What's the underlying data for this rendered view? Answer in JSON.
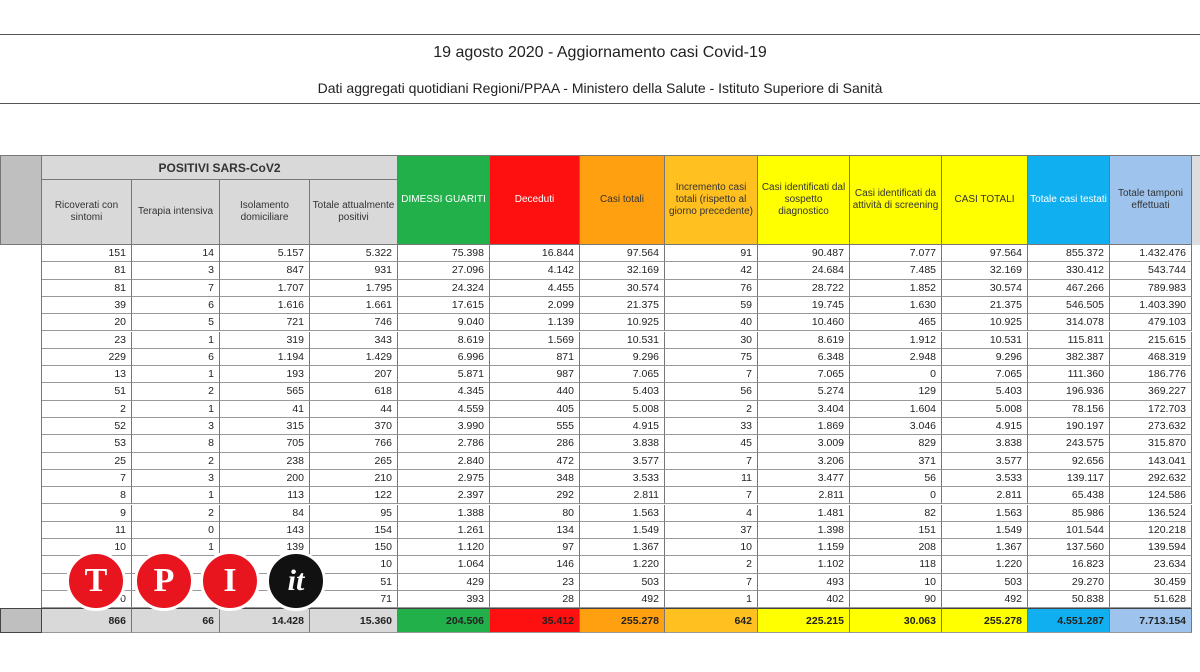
{
  "header": {
    "title": "19 agosto 2020 - Aggiornamento casi Covid-19",
    "subtitle": "Dati aggregati quotidiani Regioni/PPAA - Ministero della Salute - Istituto Superiore di Sanità"
  },
  "table": {
    "group_header": "POSITIVI SARS-CoV2",
    "columns": [
      "Ricoverati con sintomi",
      "Terapia intensiva",
      "Isolamento domiciliare",
      "Totale attualmente positivi",
      "DIMESSI GUARITI",
      "Deceduti",
      "Casi totali",
      "Incremento casi totali (rispetto al giorno precedente)",
      "Casi identificati dal sospetto diagnostico",
      "Casi identificati da attività di screening",
      "CASI TOTALI",
      "Totale casi testati",
      "Totale tamponi effettuati"
    ],
    "rows": [
      [
        "151",
        "14",
        "5.157",
        "5.322",
        "75.398",
        "16.844",
        "97.564",
        "91",
        "90.487",
        "7.077",
        "97.564",
        "855.372",
        "1.432.476"
      ],
      [
        "81",
        "3",
        "847",
        "931",
        "27.096",
        "4.142",
        "32.169",
        "42",
        "24.684",
        "7.485",
        "32.169",
        "330.412",
        "543.744"
      ],
      [
        "81",
        "7",
        "1.707",
        "1.795",
        "24.324",
        "4.455",
        "30.574",
        "76",
        "28.722",
        "1.852",
        "30.574",
        "467.266",
        "789.983"
      ],
      [
        "39",
        "6",
        "1.616",
        "1.661",
        "17.615",
        "2.099",
        "21.375",
        "59",
        "19.745",
        "1.630",
        "21.375",
        "546.505",
        "1.403.390"
      ],
      [
        "20",
        "5",
        "721",
        "746",
        "9.040",
        "1.139",
        "10.925",
        "40",
        "10.460",
        "465",
        "10.925",
        "314.078",
        "479.103"
      ],
      [
        "23",
        "1",
        "319",
        "343",
        "8.619",
        "1.569",
        "10.531",
        "30",
        "8.619",
        "1.912",
        "10.531",
        "115.811",
        "215.615"
      ],
      [
        "229",
        "6",
        "1.194",
        "1.429",
        "6.996",
        "871",
        "9.296",
        "75",
        "6.348",
        "2.948",
        "9.296",
        "382.387",
        "468.319"
      ],
      [
        "13",
        "1",
        "193",
        "207",
        "5.871",
        "987",
        "7.065",
        "7",
        "7.065",
        "0",
        "7.065",
        "111.360",
        "186.776"
      ],
      [
        "51",
        "2",
        "565",
        "618",
        "4.345",
        "440",
        "5.403",
        "56",
        "5.274",
        "129",
        "5.403",
        "196.936",
        "369.227"
      ],
      [
        "2",
        "1",
        "41",
        "44",
        "4.559",
        "405",
        "5.008",
        "2",
        "3.404",
        "1.604",
        "5.008",
        "78.156",
        "172.703"
      ],
      [
        "52",
        "3",
        "315",
        "370",
        "3.990",
        "555",
        "4.915",
        "33",
        "1.869",
        "3.046",
        "4.915",
        "190.197",
        "273.632"
      ],
      [
        "53",
        "8",
        "705",
        "766",
        "2.786",
        "286",
        "3.838",
        "45",
        "3.009",
        "829",
        "3.838",
        "243.575",
        "315.870"
      ],
      [
        "25",
        "2",
        "238",
        "265",
        "2.840",
        "472",
        "3.577",
        "7",
        "3.206",
        "371",
        "3.577",
        "92.656",
        "143.041"
      ],
      [
        "7",
        "3",
        "200",
        "210",
        "2.975",
        "348",
        "3.533",
        "11",
        "3.477",
        "56",
        "3.533",
        "139.117",
        "292.632"
      ],
      [
        "8",
        "1",
        "113",
        "122",
        "2.397",
        "292",
        "2.811",
        "7",
        "2.811",
        "0",
        "2.811",
        "65.438",
        "124.586"
      ],
      [
        "9",
        "2",
        "84",
        "95",
        "1.388",
        "80",
        "1.563",
        "4",
        "1.481",
        "82",
        "1.563",
        "85.986",
        "136.524"
      ],
      [
        "11",
        "0",
        "143",
        "154",
        "1.261",
        "134",
        "1.549",
        "37",
        "1.398",
        "151",
        "1.549",
        "101.544",
        "120.218"
      ],
      [
        "10",
        "1",
        "139",
        "150",
        "1.120",
        "97",
        "1.367",
        "10",
        "1.159",
        "208",
        "1.367",
        "137.560",
        "139.594"
      ],
      [
        null,
        null,
        null,
        "10",
        "1.064",
        "146",
        "1.220",
        "2",
        "1.102",
        "118",
        "1.220",
        "16.823",
        "23.634"
      ],
      [
        null,
        null,
        null,
        "51",
        "429",
        "23",
        "503",
        "7",
        "493",
        "10",
        "503",
        "29.270",
        "30.459"
      ],
      [
        "0",
        null,
        null,
        "71",
        "393",
        "28",
        "492",
        "1",
        "402",
        "90",
        "492",
        "50.838",
        "51.628"
      ]
    ],
    "totals": [
      "866",
      "66",
      "14.428",
      "15.360",
      "204.506",
      "35.412",
      "255.278",
      "642",
      "225.215",
      "30.063",
      "255.278",
      "4.551.287",
      "7.713.154"
    ]
  },
  "logo": [
    "T",
    "P",
    "I",
    "it"
  ]
}
